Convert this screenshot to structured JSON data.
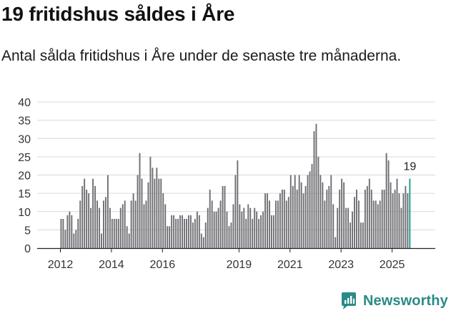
{
  "header": {
    "title": "19 fritidshus såldes i Åre",
    "subtitle": "Antal sålda fritidshus i Åre under de senaste tre månaderna."
  },
  "brand": {
    "name": "Newsworthy",
    "icon": "newsworthy-logo-icon",
    "color": "#2a8b86"
  },
  "chart_data": {
    "type": "bar",
    "title": "",
    "xlabel": "",
    "ylabel": "",
    "ylim": [
      0,
      40
    ],
    "yticks": [
      0,
      5,
      10,
      15,
      20,
      25,
      30,
      35,
      40
    ],
    "xtick_labels": [
      "2012",
      "2014",
      "2016",
      "2019",
      "2021",
      "2023",
      "2025"
    ],
    "grid": true,
    "bar_color": "#6f6e73",
    "highlight_color": "#1b9a8c",
    "highlight_label": "19",
    "x_start": "2012-01",
    "x_step": "month",
    "values": [
      8,
      8,
      5,
      9,
      10,
      9,
      4,
      5,
      8,
      13,
      17,
      19,
      16,
      15,
      11,
      19,
      17,
      13,
      11,
      4,
      13,
      14,
      20,
      11,
      8,
      8,
      8,
      8,
      11,
      12,
      13,
      6,
      4,
      13,
      15,
      13,
      20,
      26,
      19,
      12,
      13,
      18,
      25,
      22,
      19,
      22,
      19,
      19,
      15,
      12,
      6,
      6,
      9,
      9,
      8,
      8,
      9,
      9,
      8,
      8,
      9,
      9,
      7,
      8,
      10,
      9,
      4,
      3,
      7,
      11,
      16,
      13,
      10,
      10,
      11,
      13,
      17,
      17,
      10,
      6,
      7,
      12,
      20,
      24,
      12,
      10,
      11,
      8,
      12,
      11,
      8,
      11,
      10,
      8,
      9,
      10,
      15,
      15,
      13,
      9,
      9,
      13,
      13,
      15,
      16,
      16,
      13,
      14,
      20,
      17,
      20,
      16,
      20,
      18,
      15,
      17,
      20,
      21,
      23,
      32,
      34,
      25,
      20,
      18,
      13,
      16,
      17,
      20,
      12,
      3,
      11,
      16,
      19,
      18,
      11,
      11,
      7,
      10,
      14,
      16,
      13,
      7,
      7,
      16,
      17,
      19,
      16,
      13,
      13,
      12,
      13,
      16,
      16,
      26,
      24,
      18,
      15,
      16,
      19,
      15,
      11,
      15,
      17,
      15,
      19
    ]
  }
}
